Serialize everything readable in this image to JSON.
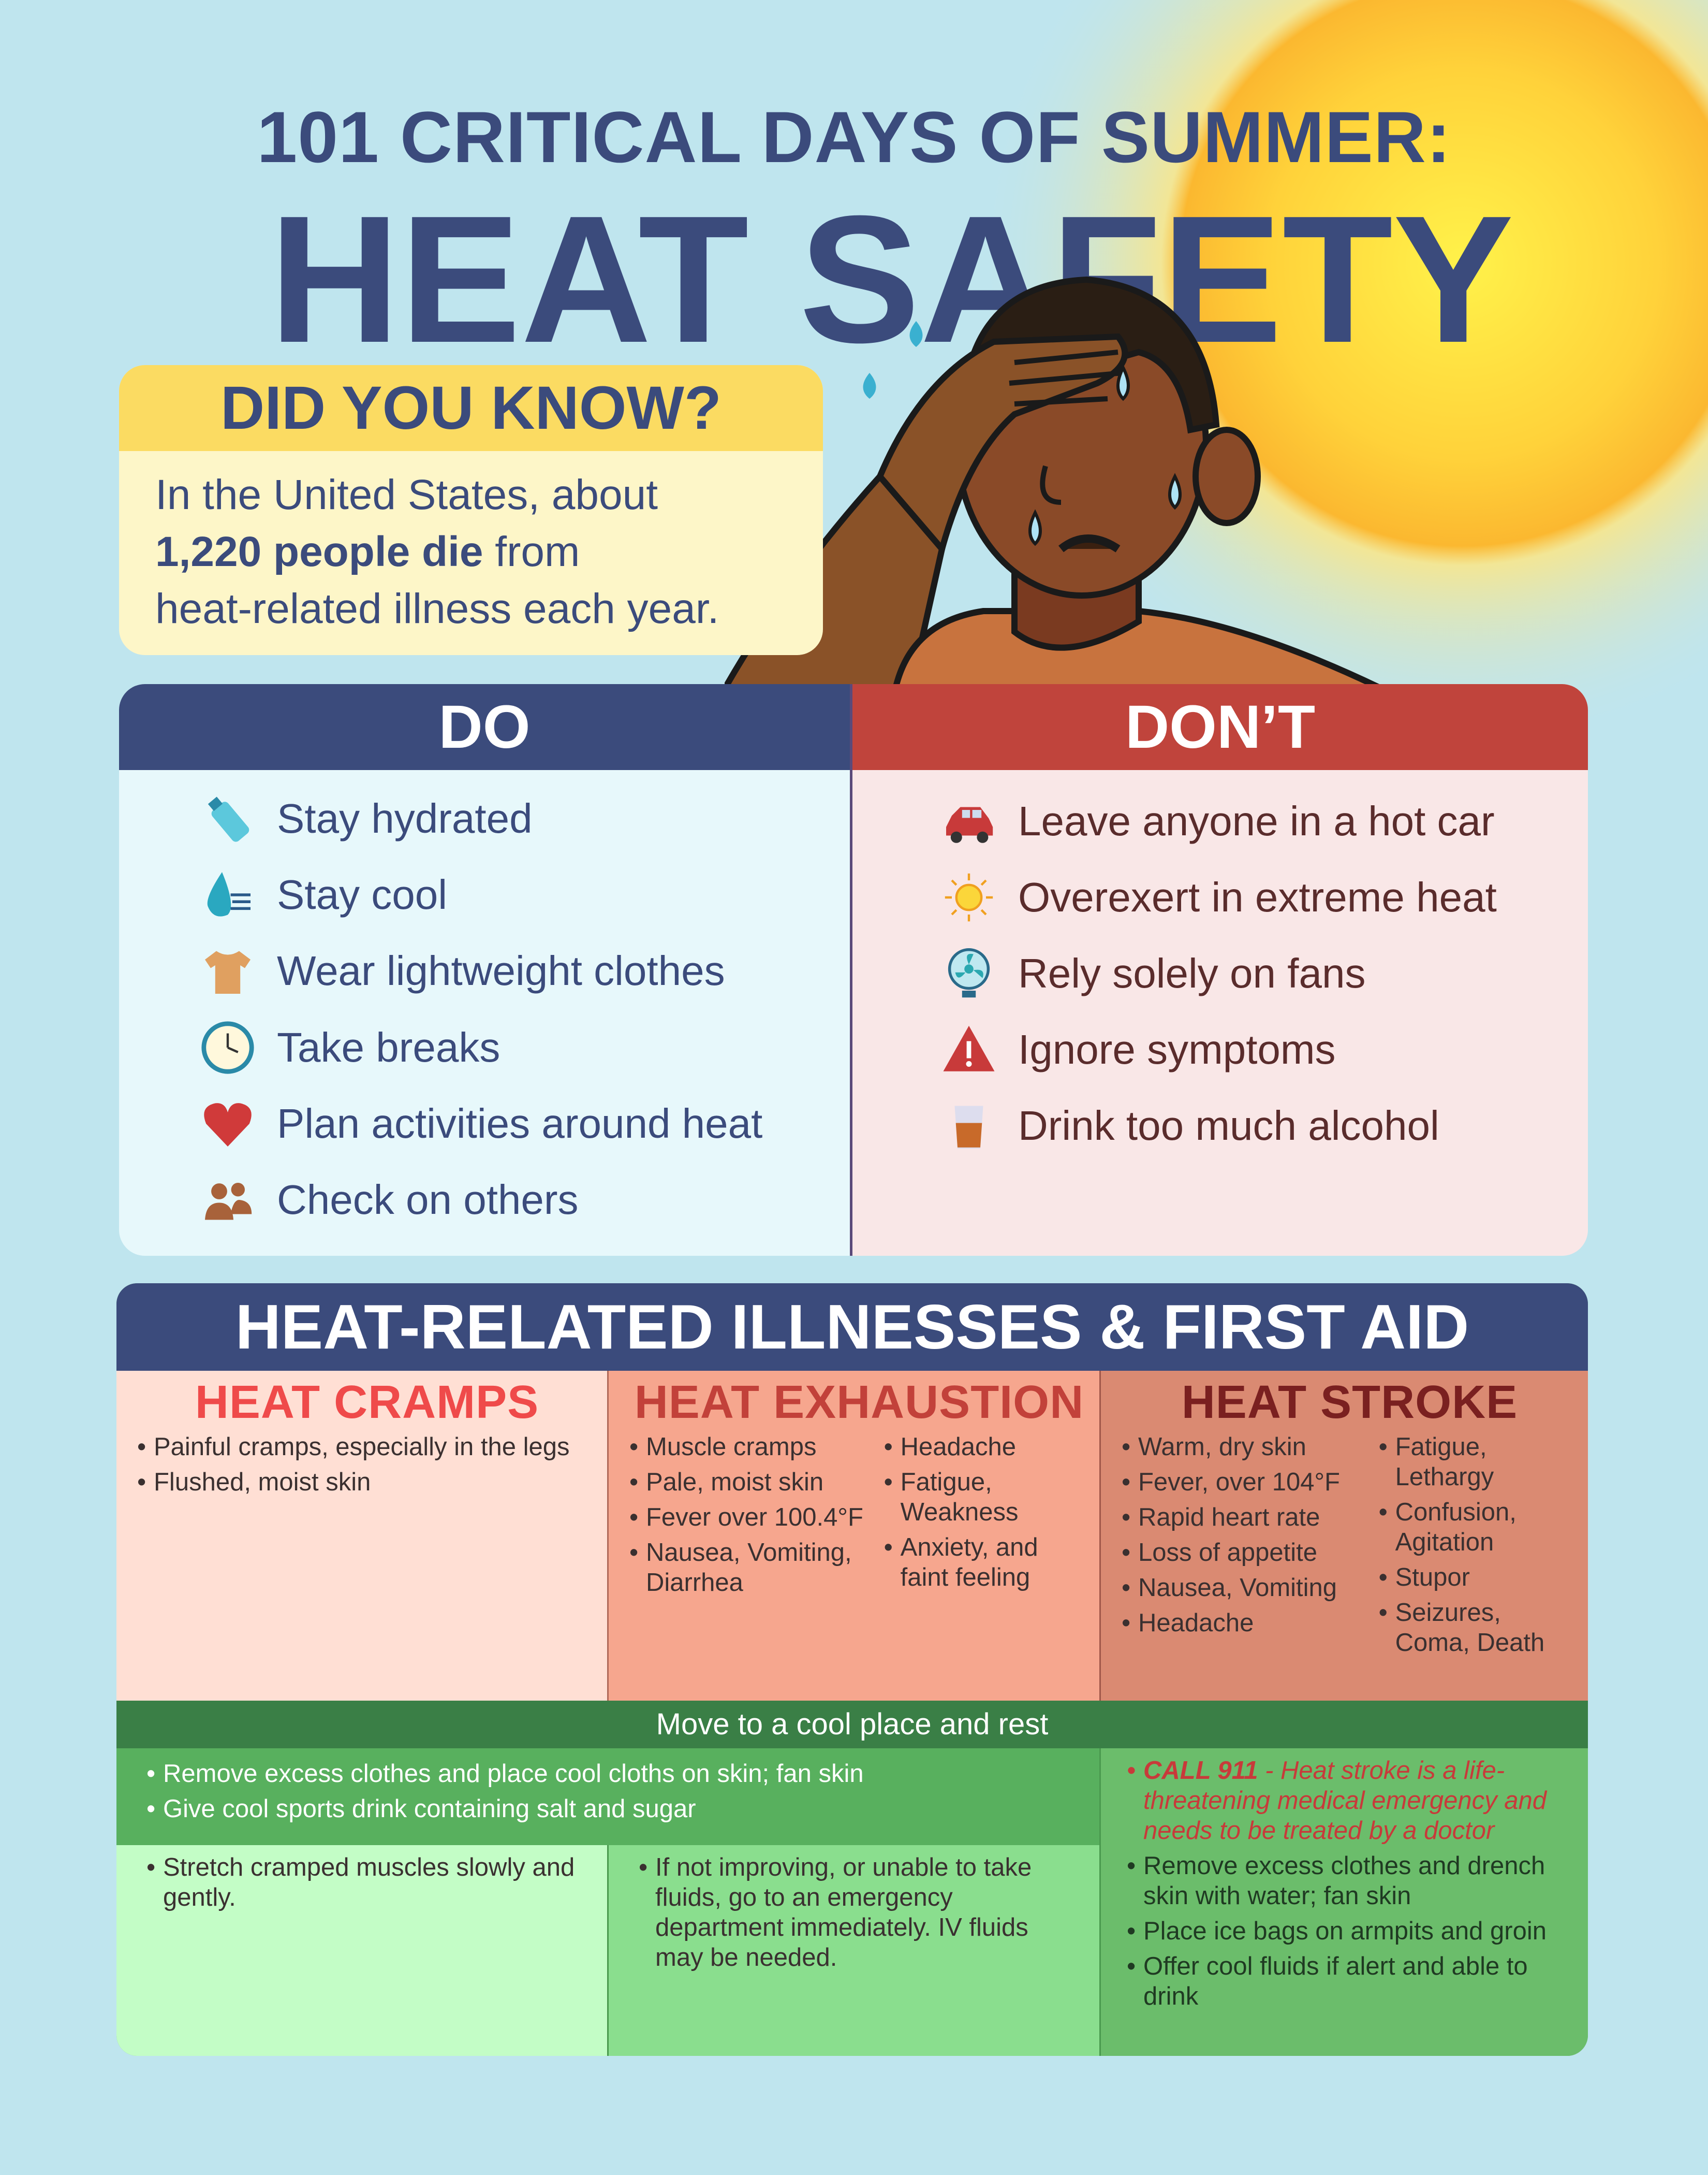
{
  "header": {
    "title_line1": "101 CRITICAL DAYS OF SUMMER:",
    "title_line2": "HEAT SAFETY"
  },
  "did_you_know": {
    "heading": "DID YOU KNOW?",
    "text_before": "In the United States, about",
    "text_bold": "1,220 people die",
    "text_after": "from",
    "text_line3": "heat-related illness each year."
  },
  "do": {
    "heading": "DO",
    "items": [
      {
        "label": "Stay hydrated",
        "icon": "water-bottle-icon"
      },
      {
        "label": "Stay cool",
        "icon": "water-drop-wind-icon"
      },
      {
        "label": "Wear lightweight clothes",
        "icon": "tshirt-icon"
      },
      {
        "label": "Take breaks",
        "icon": "clock-icon"
      },
      {
        "label": "Plan activities around heat",
        "icon": "heart-icon"
      },
      {
        "label": "Check on others",
        "icon": "people-icon"
      }
    ]
  },
  "dont": {
    "heading": "DON’T",
    "items": [
      {
        "label": "Leave anyone in a hot car",
        "icon": "car-icon"
      },
      {
        "label": "Overexert in extreme heat",
        "icon": "sun-icon"
      },
      {
        "label": "Rely solely on fans",
        "icon": "fan-icon"
      },
      {
        "label": "Ignore symptoms",
        "icon": "warning-icon"
      },
      {
        "label": "Drink too much alcohol",
        "icon": "glass-icon"
      }
    ]
  },
  "illnesses": {
    "heading": "HEAT-RELATED ILLNESSES & FIRST AID",
    "cramps": {
      "title": "HEAT CRAMPS",
      "symptoms": [
        "Painful cramps, especially in the legs",
        "Flushed, moist skin"
      ],
      "aid": [
        "Stretch cramped muscles slowly and gently."
      ]
    },
    "exhaustion": {
      "title": "HEAT EXHAUSTION",
      "symptoms_a": [
        "Muscle cramps",
        "Pale, moist skin",
        "Fever over 100.4°F",
        "Nausea, Vomiting, Diarrhea"
      ],
      "symptoms_b": [
        "Headache",
        "Fatigue, Weakness",
        "Anxiety, and faint feeling"
      ],
      "aid": [
        "If not improving, or unable to take fluids, go to an emergency department immediately. IV fluids may be needed."
      ]
    },
    "stroke": {
      "title": "HEAT STROKE",
      "symptoms_a": [
        "Warm, dry skin",
        "Fever, over 104°F",
        "Rapid heart rate",
        "Loss of appetite",
        "Nausea, Vomiting",
        "Headache"
      ],
      "symptoms_b": [
        "Fatigue, Lethargy",
        "Confusion, Agitation",
        "Stupor",
        "Seizures, Coma, Death"
      ],
      "call_bold": "CALL 911",
      "call_text": " - Heat stroke is a life-threatening medical emergency and needs to be treated by a doctor",
      "aid": [
        "Remove excess clothes and drench skin with water; fan skin",
        "Place ice bags on armpits and groin",
        "Offer cool fluids if alert and able to drink"
      ]
    },
    "shared_aid_heading": "Move to a cool place and rest",
    "shared_aid": [
      "Remove excess clothes and place cool cloths on skin; fan skin",
      "Give cool sports drink containing salt and sugar"
    ]
  },
  "colors": {
    "navy": "#3b4b7c",
    "red": "#c0443c",
    "yellow": "#fbdb62",
    "green": "#3a7f46"
  }
}
